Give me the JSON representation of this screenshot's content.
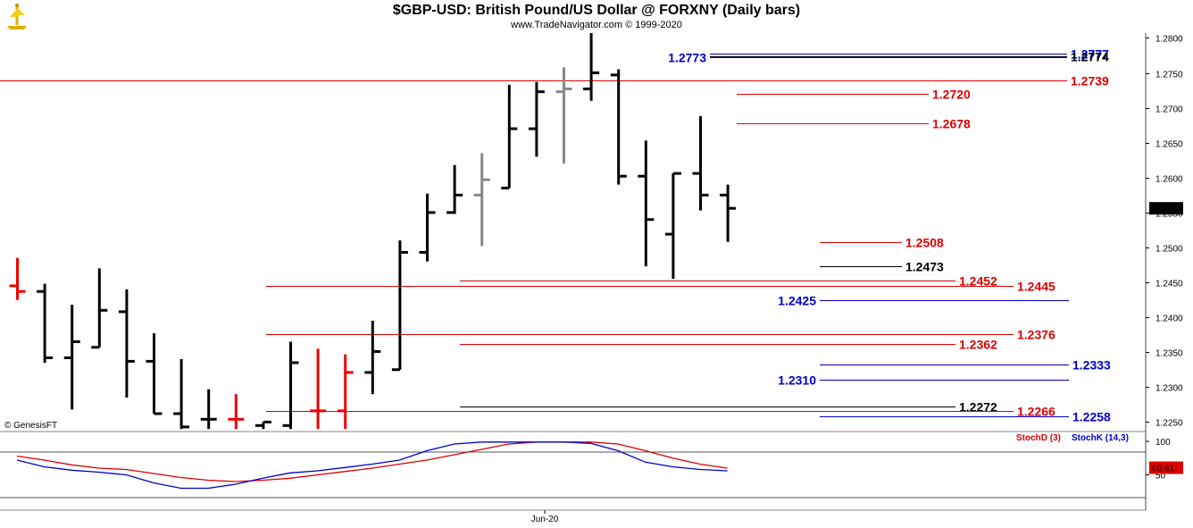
{
  "header": {
    "title": "$GBP-USD:  British Pound/US Dollar @ FORXNY  (Daily bars)",
    "subtitle": "www.TradeNavigator.com © 1999-2020"
  },
  "chart_data": {
    "type": "ohlc",
    "price_axis": {
      "ylim": [
        1.2239,
        1.2807
      ],
      "ticks": [
        "1.2800",
        "1.2750",
        "1.2700",
        "1.2650",
        "1.2600",
        "1.2550",
        "1.2500",
        "1.2450",
        "1.2400",
        "1.2350",
        "1.2300",
        "1.2250"
      ],
      "last_price": "1.2556"
    },
    "bars": [
      {
        "c": "red",
        "o": 1.2445,
        "h": 1.2485,
        "l": 1.2425,
        "cl": 1.2437
      },
      {
        "c": "black",
        "o": 1.2437,
        "h": 1.2448,
        "l": 1.2335,
        "cl": 1.2342
      },
      {
        "c": "black",
        "o": 1.2342,
        "h": 1.2418,
        "l": 1.2268,
        "cl": 1.2365
      },
      {
        "c": "black",
        "o": 1.2357,
        "h": 1.247,
        "l": 1.2357,
        "cl": 1.241
      },
      {
        "c": "black",
        "o": 1.2408,
        "h": 1.244,
        "l": 1.2285,
        "cl": 1.2337
      },
      {
        "c": "black",
        "o": 1.2337,
        "h": 1.2377,
        "l": 1.2262,
        "cl": 1.2262
      },
      {
        "c": "black",
        "o": 1.2262,
        "h": 1.234,
        "l": 1.224,
        "cl": 1.2243
      },
      {
        "c": "black",
        "o": 1.2254,
        "h": 1.2297,
        "l": 1.224,
        "cl": 1.2254
      },
      {
        "c": "red",
        "o": 1.2254,
        "h": 1.229,
        "l": 1.224,
        "cl": 1.2254
      },
      {
        "c": "black",
        "o": 1.2245,
        "h": 1.225,
        "l": 1.224,
        "cl": 1.225
      },
      {
        "c": "black",
        "o": 1.2245,
        "h": 1.2365,
        "l": 1.224,
        "cl": 1.2335
      },
      {
        "c": "red",
        "o": 1.2266,
        "h": 1.2355,
        "l": 1.224,
        "cl": 1.2266
      },
      {
        "c": "red",
        "o": 1.2266,
        "h": 1.2347,
        "l": 1.224,
        "cl": 1.2321
      },
      {
        "c": "black",
        "o": 1.2321,
        "h": 1.2395,
        "l": 1.229,
        "cl": 1.2351
      },
      {
        "c": "black",
        "o": 1.2325,
        "h": 1.251,
        "l": 1.2325,
        "cl": 1.2493
      },
      {
        "c": "black",
        "o": 1.2493,
        "h": 1.2577,
        "l": 1.248,
        "cl": 1.255
      },
      {
        "c": "black",
        "o": 1.255,
        "h": 1.2618,
        "l": 1.2548,
        "cl": 1.2575
      },
      {
        "c": "gray",
        "o": 1.2575,
        "h": 1.2635,
        "l": 1.2502,
        "cl": 1.2597
      },
      {
        "c": "black",
        "o": 1.2585,
        "h": 1.2733,
        "l": 1.2585,
        "cl": 1.267
      },
      {
        "c": "black",
        "o": 1.267,
        "h": 1.2737,
        "l": 1.263,
        "cl": 1.2723
      },
      {
        "c": "gray",
        "o": 1.2723,
        "h": 1.2758,
        "l": 1.262,
        "cl": 1.2727
      },
      {
        "c": "black",
        "o": 1.2727,
        "h": 1.2807,
        "l": 1.271,
        "cl": 1.275
      },
      {
        "c": "black",
        "o": 1.2747,
        "h": 1.2755,
        "l": 1.259,
        "cl": 1.2602
      },
      {
        "c": "black",
        "o": 1.2602,
        "h": 1.2653,
        "l": 1.2473,
        "cl": 1.254
      },
      {
        "c": "black",
        "o": 1.2519,
        "h": 1.2606,
        "l": 1.2455,
        "cl": 1.2606
      },
      {
        "c": "black",
        "o": 1.2606,
        "h": 1.2688,
        "l": 1.2553,
        "cl": 1.2575
      },
      {
        "c": "black",
        "o": 1.2575,
        "h": 1.259,
        "l": 1.2508,
        "cl": 1.2556
      }
    ],
    "levels": [
      {
        "value": 1.2777,
        "label": "1.2777",
        "color": "#0000cc",
        "side": "right",
        "x0": 0.795,
        "x1": 1.195
      },
      {
        "value": 1.2774,
        "label": "1.2774",
        "color": "#000000",
        "side": "right",
        "x0": 0.795,
        "x1": 1.195
      },
      {
        "value": 1.2773,
        "label": "1.2773",
        "color": "#0000cc",
        "side": "left",
        "x0": 0.795,
        "x1": 1.195
      },
      {
        "value": 1.2739,
        "label": "1.2739",
        "color": "#dd0000",
        "side": "right",
        "x0": 0.0,
        "x1": 1.195
      },
      {
        "value": 1.272,
        "label": "1.2720",
        "color": "#dd0000",
        "side": "right",
        "x0": 0.825,
        "x1": 1.04
      },
      {
        "value": 1.2678,
        "label": "1.2678",
        "color": "#dd0000",
        "side": "right",
        "x0": 0.825,
        "x1": 1.04
      },
      {
        "value": 1.2508,
        "label": "1.2508",
        "color": "#dd0000",
        "side": "right",
        "x0": 0.918,
        "x1": 1.01
      },
      {
        "value": 1.2473,
        "label": "1.2473",
        "color": "#000000",
        "side": "right",
        "x0": 0.918,
        "x1": 1.01
      },
      {
        "value": 1.2452,
        "label": "1.2452",
        "color": "#dd0000",
        "side": "right",
        "x0": 0.515,
        "x1": 1.07
      },
      {
        "value": 1.2445,
        "label": "1.2445",
        "color": "#dd0000",
        "side": "right",
        "x0": 0.298,
        "x1": 1.135
      },
      {
        "value": 1.2425,
        "label": "1.2425",
        "color": "#0000cc",
        "side": "left",
        "x0": 0.918,
        "x1": 1.197
      },
      {
        "value": 1.2376,
        "label": "1.2376",
        "color": "#dd0000",
        "side": "right",
        "x0": 0.298,
        "x1": 1.135
      },
      {
        "value": 1.2362,
        "label": "1.2362",
        "color": "#dd0000",
        "side": "right",
        "x0": 0.515,
        "x1": 1.07
      },
      {
        "value": 1.2333,
        "label": "1.2333",
        "color": "#0000cc",
        "side": "right",
        "x0": 0.918,
        "x1": 1.197
      },
      {
        "value": 1.231,
        "label": "1.2310",
        "color": "#0000cc",
        "side": "left",
        "x0": 0.918,
        "x1": 1.197
      },
      {
        "value": 1.2272,
        "label": "1.2272",
        "color": "#000000",
        "side": "right",
        "x0": 0.515,
        "x1": 1.07
      },
      {
        "value": 1.2266,
        "label": "1.2266",
        "color": "#dd0000",
        "side": "right",
        "x0": 0.298,
        "x1": 1.135
      },
      {
        "value": 1.2258,
        "label": "1.2258",
        "color": "#0000cc",
        "side": "right",
        "x0": 0.918,
        "x1": 1.197
      }
    ],
    "oscillator": {
      "ylim": [
        0,
        100
      ],
      "ticks": [
        "100",
        "50"
      ],
      "series": [
        {
          "name": "StochD (3)",
          "color": "#dd0000",
          "values": [
            78,
            72,
            65,
            60,
            58,
            52,
            46,
            42,
            40,
            42,
            45,
            50,
            55,
            60,
            66,
            72,
            80,
            88,
            96,
            99,
            99,
            99,
            96,
            86,
            75,
            66,
            60
          ]
        },
        {
          "name": "StochK (14,3)",
          "color": "#0000cc",
          "values": [
            72,
            62,
            57,
            54,
            50,
            38,
            30,
            30,
            36,
            45,
            53,
            56,
            61,
            66,
            72,
            86,
            96,
            99,
            99,
            99,
            99,
            97,
            86,
            69,
            62,
            58,
            56
          ]
        }
      ],
      "last_value": "60.61"
    },
    "x_label": "Jun-20",
    "watermark": "© GenesisFT"
  }
}
